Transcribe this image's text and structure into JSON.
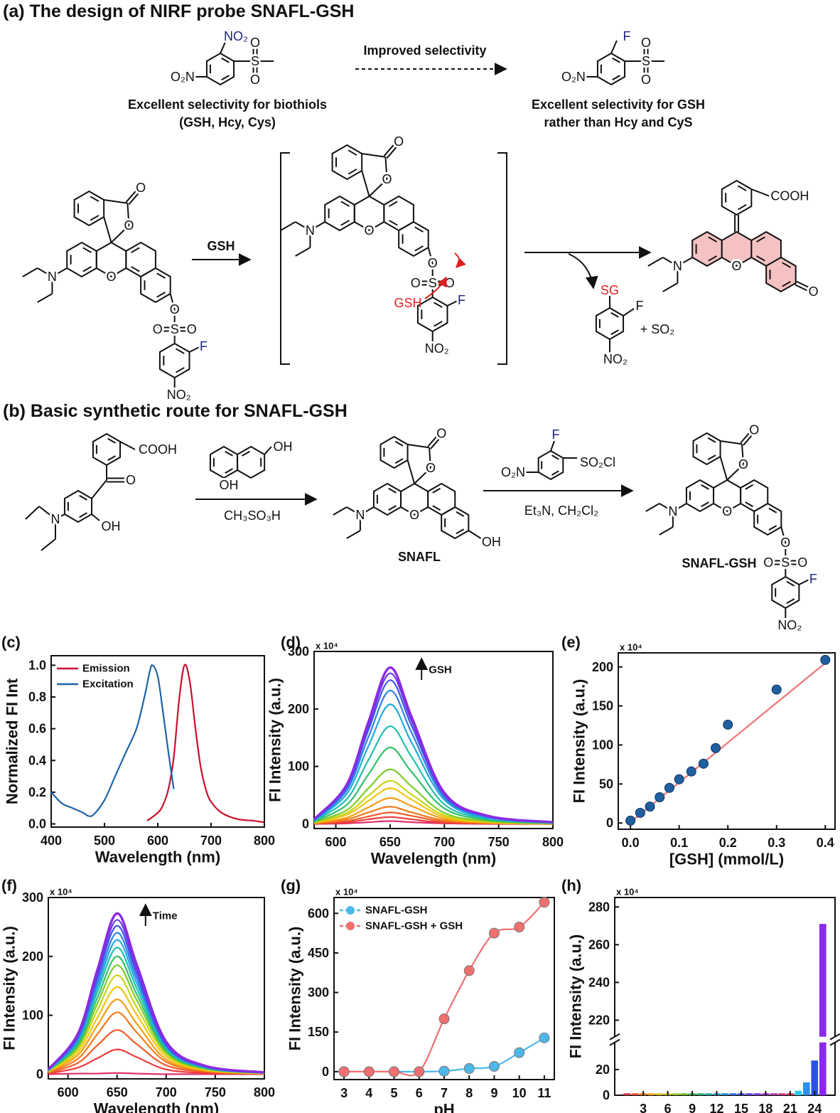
{
  "scheme_a": {
    "title": "(a) The design of NIRF probe SNAFL-GSH",
    "top_left": {
      "ortho": "NO₂",
      "para": "O₂N",
      "s": "S",
      "o1": "O",
      "o2": "O",
      "caption": [
        "Excellent selectivity for biothiols",
        "(GSH, Hcy, Cys)"
      ]
    },
    "arrow_label": "Improved selectivity",
    "top_right": {
      "ortho": "F",
      "para": "O₂N",
      "s": "S",
      "o1": "O",
      "o2": "O",
      "caption": [
        "Excellent selectivity for GSH",
        "rather than Hcy and CyS"
      ]
    },
    "probe": {
      "co": "O",
      "lo": "O",
      "n": "N",
      "xo": "O",
      "eo": "O",
      "s": "S",
      "so1": "O",
      "so2": "O",
      "f": "F",
      "no2": "NO₂"
    },
    "reagent": "GSH",
    "intermediate": {
      "co": "O",
      "lo": "O",
      "n": "N",
      "xo": "O",
      "eo": "O",
      "s": "S",
      "so1": "O",
      "so2": "O",
      "f": "F",
      "no2": "NO₂",
      "attack": "GSH"
    },
    "byproduct": {
      "sg": "SG",
      "f": "F",
      "no2": "NO₂",
      "extra": "+ SO₂"
    },
    "product": {
      "cooh": "COOH",
      "n": "N",
      "xo": "O",
      "ko": "O"
    }
  },
  "scheme_b": {
    "title": "(b) Basic synthetic route for SNAFL-GSH",
    "start": {
      "cooh": "COOH",
      "co": "O",
      "n": "N",
      "oh": "OH"
    },
    "naphthol": {
      "oh1": "OH",
      "oh2": "OH"
    },
    "step1": "CH₃SO₃H",
    "snafl": {
      "co": "O",
      "lo": "O",
      "n": "N",
      "xo": "O",
      "oh": "OH",
      "name": "SNAFL"
    },
    "sulfonyl": {
      "para": "O₂N",
      "f": "F",
      "so2cl": "SO₂Cl"
    },
    "step2": "Et₃N, CH₂Cl₂",
    "final": {
      "co": "O",
      "lo": "O",
      "n": "N",
      "xo": "O",
      "eo": "O",
      "s": "S",
      "so1": "O",
      "so2": "O",
      "f": "F",
      "no2": "NO₂",
      "name": "SNAFL-GSH"
    }
  },
  "chart_data": [
    {
      "type": "line",
      "panel": "(c)",
      "xlabel": "Wavelength (nm)",
      "ylabel": "Normalized FI Int",
      "xlim": [
        400,
        800
      ],
      "ylim": [
        -0.02,
        1.06
      ],
      "xticks": [
        400,
        500,
        600,
        700,
        800
      ],
      "yticks": [
        {
          "value": 0,
          "label": "0.0"
        },
        0.2,
        0.4,
        0.6,
        0.8,
        {
          "value": 1,
          "label": "1.0"
        }
      ],
      "legend": "upper left",
      "series": [
        {
          "name": "Emission",
          "color": "#c8102e",
          "x": [
            580,
            600,
            610,
            620,
            630,
            640,
            650,
            660,
            670,
            680,
            690,
            700,
            720,
            750,
            780,
            800
          ],
          "values": [
            0.02,
            0.07,
            0.12,
            0.22,
            0.42,
            0.78,
            1.0,
            0.9,
            0.62,
            0.37,
            0.22,
            0.14,
            0.07,
            0.03,
            0.02,
            0.01
          ]
        },
        {
          "name": "Excitation",
          "color": "#1f63a8",
          "x": [
            400,
            420,
            440,
            460,
            470,
            480,
            500,
            520,
            540,
            560,
            575,
            585,
            590,
            600,
            610,
            620,
            630
          ],
          "values": [
            0.2,
            0.13,
            0.1,
            0.07,
            0.05,
            0.06,
            0.15,
            0.3,
            0.45,
            0.6,
            0.8,
            0.96,
            1.0,
            0.93,
            0.7,
            0.45,
            0.22
          ]
        }
      ]
    },
    {
      "type": "line",
      "panel": "(d)",
      "scale_note": "x 10⁴",
      "annotation": "GSH",
      "xlabel": "Wavelength (nm)",
      "ylabel": "FI Intensity (a.u.)",
      "xlim": [
        580,
        800
      ],
      "ylim": [
        -8,
        300
      ],
      "xticks": [
        600,
        650,
        700,
        750,
        800
      ],
      "yticks": [
        0,
        100,
        200,
        300
      ],
      "x": [
        580,
        610,
        630,
        650,
        670,
        700,
        740,
        800
      ],
      "series": [
        {
          "color": "#e0306a",
          "values": [
            0,
            1,
            3,
            5,
            3,
            1,
            0,
            0
          ]
        },
        {
          "color": "#ee3b3b",
          "values": [
            0,
            3,
            8,
            12,
            8,
            2,
            1,
            0
          ]
        },
        {
          "color": "#f05a28",
          "values": [
            1,
            5,
            13,
            20,
            14,
            4,
            1,
            0
          ]
        },
        {
          "color": "#f27a1a",
          "values": [
            1,
            8,
            20,
            30,
            20,
            6,
            2,
            0
          ]
        },
        {
          "color": "#f59d10",
          "values": [
            1,
            11,
            29,
            45,
            31,
            9,
            2,
            0
          ]
        },
        {
          "color": "#f2c40f",
          "values": [
            2,
            16,
            40,
            62,
            42,
            12,
            3,
            1
          ]
        },
        {
          "color": "#c8d616",
          "values": [
            2,
            19,
            49,
            75,
            51,
            15,
            4,
            1
          ]
        },
        {
          "color": "#7ccc2a",
          "values": [
            3,
            24,
            62,
            95,
            65,
            19,
            5,
            1
          ]
        },
        {
          "color": "#2fc06a",
          "values": [
            4,
            33,
            86,
            133,
            90,
            27,
            7,
            1
          ]
        },
        {
          "color": "#20bfb0",
          "values": [
            5,
            43,
            111,
            170,
            116,
            34,
            9,
            2
          ]
        },
        {
          "color": "#1fa9e0",
          "values": [
            6,
            52,
            135,
            208,
            141,
            42,
            10,
            2
          ]
        },
        {
          "color": "#2f7fe8",
          "values": [
            7,
            58,
            151,
            232,
            158,
            46,
            12,
            2
          ]
        },
        {
          "color": "#3f54e8",
          "values": [
            8,
            63,
            163,
            250,
            170,
            50,
            13,
            3
          ]
        },
        {
          "color": "#6a3ae8",
          "values": [
            8,
            66,
            170,
            262,
            178,
            52,
            13,
            3
          ]
        },
        {
          "color": "#8b2be2",
          "values": [
            8,
            68,
            177,
            272,
            185,
            54,
            14,
            3
          ]
        }
      ]
    },
    {
      "type": "scatter",
      "panel": "(e)",
      "scale_note": "x 10⁴",
      "xlabel": "[GSH] (mmol/L)",
      "ylabel": "FI Intensity (a.u.)",
      "xlim": [
        -0.025,
        0.42
      ],
      "ylim": [
        -8,
        218
      ],
      "xticks": [
        {
          "value": 0,
          "label": "0.0"
        },
        0.1,
        0.2,
        0.3,
        0.4
      ],
      "yticks": [
        0,
        50,
        100,
        150,
        200
      ],
      "series": [
        {
          "color": "#1f5fa0",
          "x": [
            0,
            0.02,
            0.04,
            0.06,
            0.08,
            0.1,
            0.125,
            0.15,
            0.175,
            0.2,
            0.3,
            0.4
          ],
          "values": [
            3,
            13,
            21,
            33,
            45,
            56,
            66,
            76,
            96,
            126,
            171,
            209
          ]
        }
      ],
      "fit": {
        "color": "#f08080",
        "x": [
          0,
          0.4
        ],
        "values": [
          1,
          205
        ]
      }
    },
    {
      "type": "line",
      "panel": "(f)",
      "scale_note": "x 10⁴",
      "annotation": "Time",
      "xlabel": "Wavelength (nm)",
      "ylabel": "FI Intensity (a.u.)",
      "xlim": [
        580,
        800
      ],
      "ylim": [
        -8,
        300
      ],
      "xticks": [
        600,
        650,
        700,
        750,
        800
      ],
      "yticks": [
        0,
        100,
        200,
        300
      ],
      "x": [
        580,
        610,
        630,
        650,
        670,
        700,
        740,
        800
      ],
      "series": [
        {
          "color": "#e0306a",
          "values": [
            0,
            1,
            1,
            2,
            1,
            0,
            0,
            0
          ]
        },
        {
          "color": "#ee3b3b",
          "values": [
            1,
            11,
            27,
            42,
            29,
            8,
            2,
            0
          ]
        },
        {
          "color": "#f05a28",
          "values": [
            2,
            19,
            49,
            75,
            51,
            15,
            4,
            1
          ]
        },
        {
          "color": "#f27a1a",
          "values": [
            3,
            26,
            68,
            105,
            71,
            21,
            5,
            1
          ]
        },
        {
          "color": "#f59d10",
          "values": [
            4,
            32,
            83,
            127,
            86,
            25,
            6,
            1
          ]
        },
        {
          "color": "#f2c40f",
          "values": [
            4,
            37,
            96,
            148,
            101,
            30,
            7,
            1
          ]
        },
        {
          "color": "#c8d616",
          "values": [
            5,
            42,
            109,
            168,
            114,
            34,
            8,
            2
          ]
        },
        {
          "color": "#7ccc2a",
          "values": [
            6,
            46,
            120,
            185,
            126,
            37,
            9,
            2
          ]
        },
        {
          "color": "#2fc06a",
          "values": [
            6,
            50,
            130,
            200,
            136,
            40,
            10,
            2
          ]
        },
        {
          "color": "#20bfb0",
          "values": [
            6,
            54,
            140,
            215,
            146,
            43,
            11,
            2
          ]
        },
        {
          "color": "#1fa9e0",
          "values": [
            7,
            57,
            148,
            228,
            155,
            46,
            11,
            2
          ]
        },
        {
          "color": "#2f7fe8",
          "values": [
            7,
            60,
            156,
            240,
            163,
            48,
            12,
            2
          ]
        },
        {
          "color": "#3f54e8",
          "values": [
            8,
            63,
            164,
            252,
            171,
            50,
            13,
            3
          ]
        },
        {
          "color": "#6a3ae8",
          "values": [
            8,
            66,
            170,
            262,
            178,
            52,
            13,
            3
          ]
        },
        {
          "color": "#8b2be2",
          "values": [
            8,
            68,
            177,
            273,
            186,
            55,
            14,
            3
          ]
        }
      ]
    },
    {
      "type": "line",
      "panel": "(g)",
      "scale_note": "x 10⁴",
      "xlabel": "pH",
      "ylabel": "FI Intensity (a.u.)",
      "xlim": [
        2.6,
        11.4
      ],
      "ylim": [
        -30,
        660
      ],
      "xticks": [
        3,
        4,
        5,
        6,
        7,
        8,
        9,
        10,
        11
      ],
      "yticks": [
        0,
        150,
        300,
        450,
        600
      ],
      "legend": "upper left",
      "markers": true,
      "x": [
        3,
        4,
        5,
        6,
        7,
        8,
        9,
        10,
        11
      ],
      "series": [
        {
          "name": "SNAFL-GSH",
          "color": "#4db8e8",
          "values": [
            0,
            0,
            0,
            0,
            2,
            12,
            20,
            72,
            128
          ]
        },
        {
          "name": "SNAFL-GSH + GSH",
          "color": "#f07070",
          "values": [
            0,
            0,
            0,
            0,
            200,
            383,
            525,
            548,
            642
          ]
        }
      ]
    },
    {
      "type": "bar",
      "panel": "(h)",
      "scale_note": "x 10⁴",
      "ylabel": "FI Intensity (a.u.)",
      "ylim": [
        0,
        285
      ],
      "ybreak": [
        40,
        212
      ],
      "yticks": [
        0,
        20,
        220,
        240,
        260,
        280
      ],
      "categories": [
        null,
        null,
        "3",
        null,
        null,
        "6",
        null,
        null,
        "9",
        null,
        null,
        "12",
        null,
        null,
        "15",
        null,
        null,
        "18",
        null,
        null,
        "21",
        null,
        null,
        "24",
        null
      ],
      "values": [
        1.5,
        1.5,
        1.5,
        1.5,
        1.5,
        1.5,
        1.5,
        1.5,
        1.5,
        1.5,
        1.5,
        1.5,
        1.5,
        1.5,
        1.5,
        1.5,
        1.5,
        1.5,
        1.5,
        1.5,
        1.5,
        3.5,
        10,
        27,
        271
      ],
      "colors": [
        "#e0304a",
        "#e8502a",
        "#ee7a1a",
        "#f0a010",
        "#e8c010",
        "#c8d010",
        "#9ac818",
        "#6cc020",
        "#3cb83c",
        "#28b070",
        "#20b0a0",
        "#20a8c8",
        "#2090d8",
        "#2a70e0",
        "#3a50e0",
        "#5a40e0",
        "#7838d8",
        "#9a30c8",
        "#b030b0",
        "#c8308a",
        "#d83060",
        "#30c8e8",
        "#2a90f0",
        "#2a50e8",
        "#8a2ae8"
      ]
    }
  ]
}
